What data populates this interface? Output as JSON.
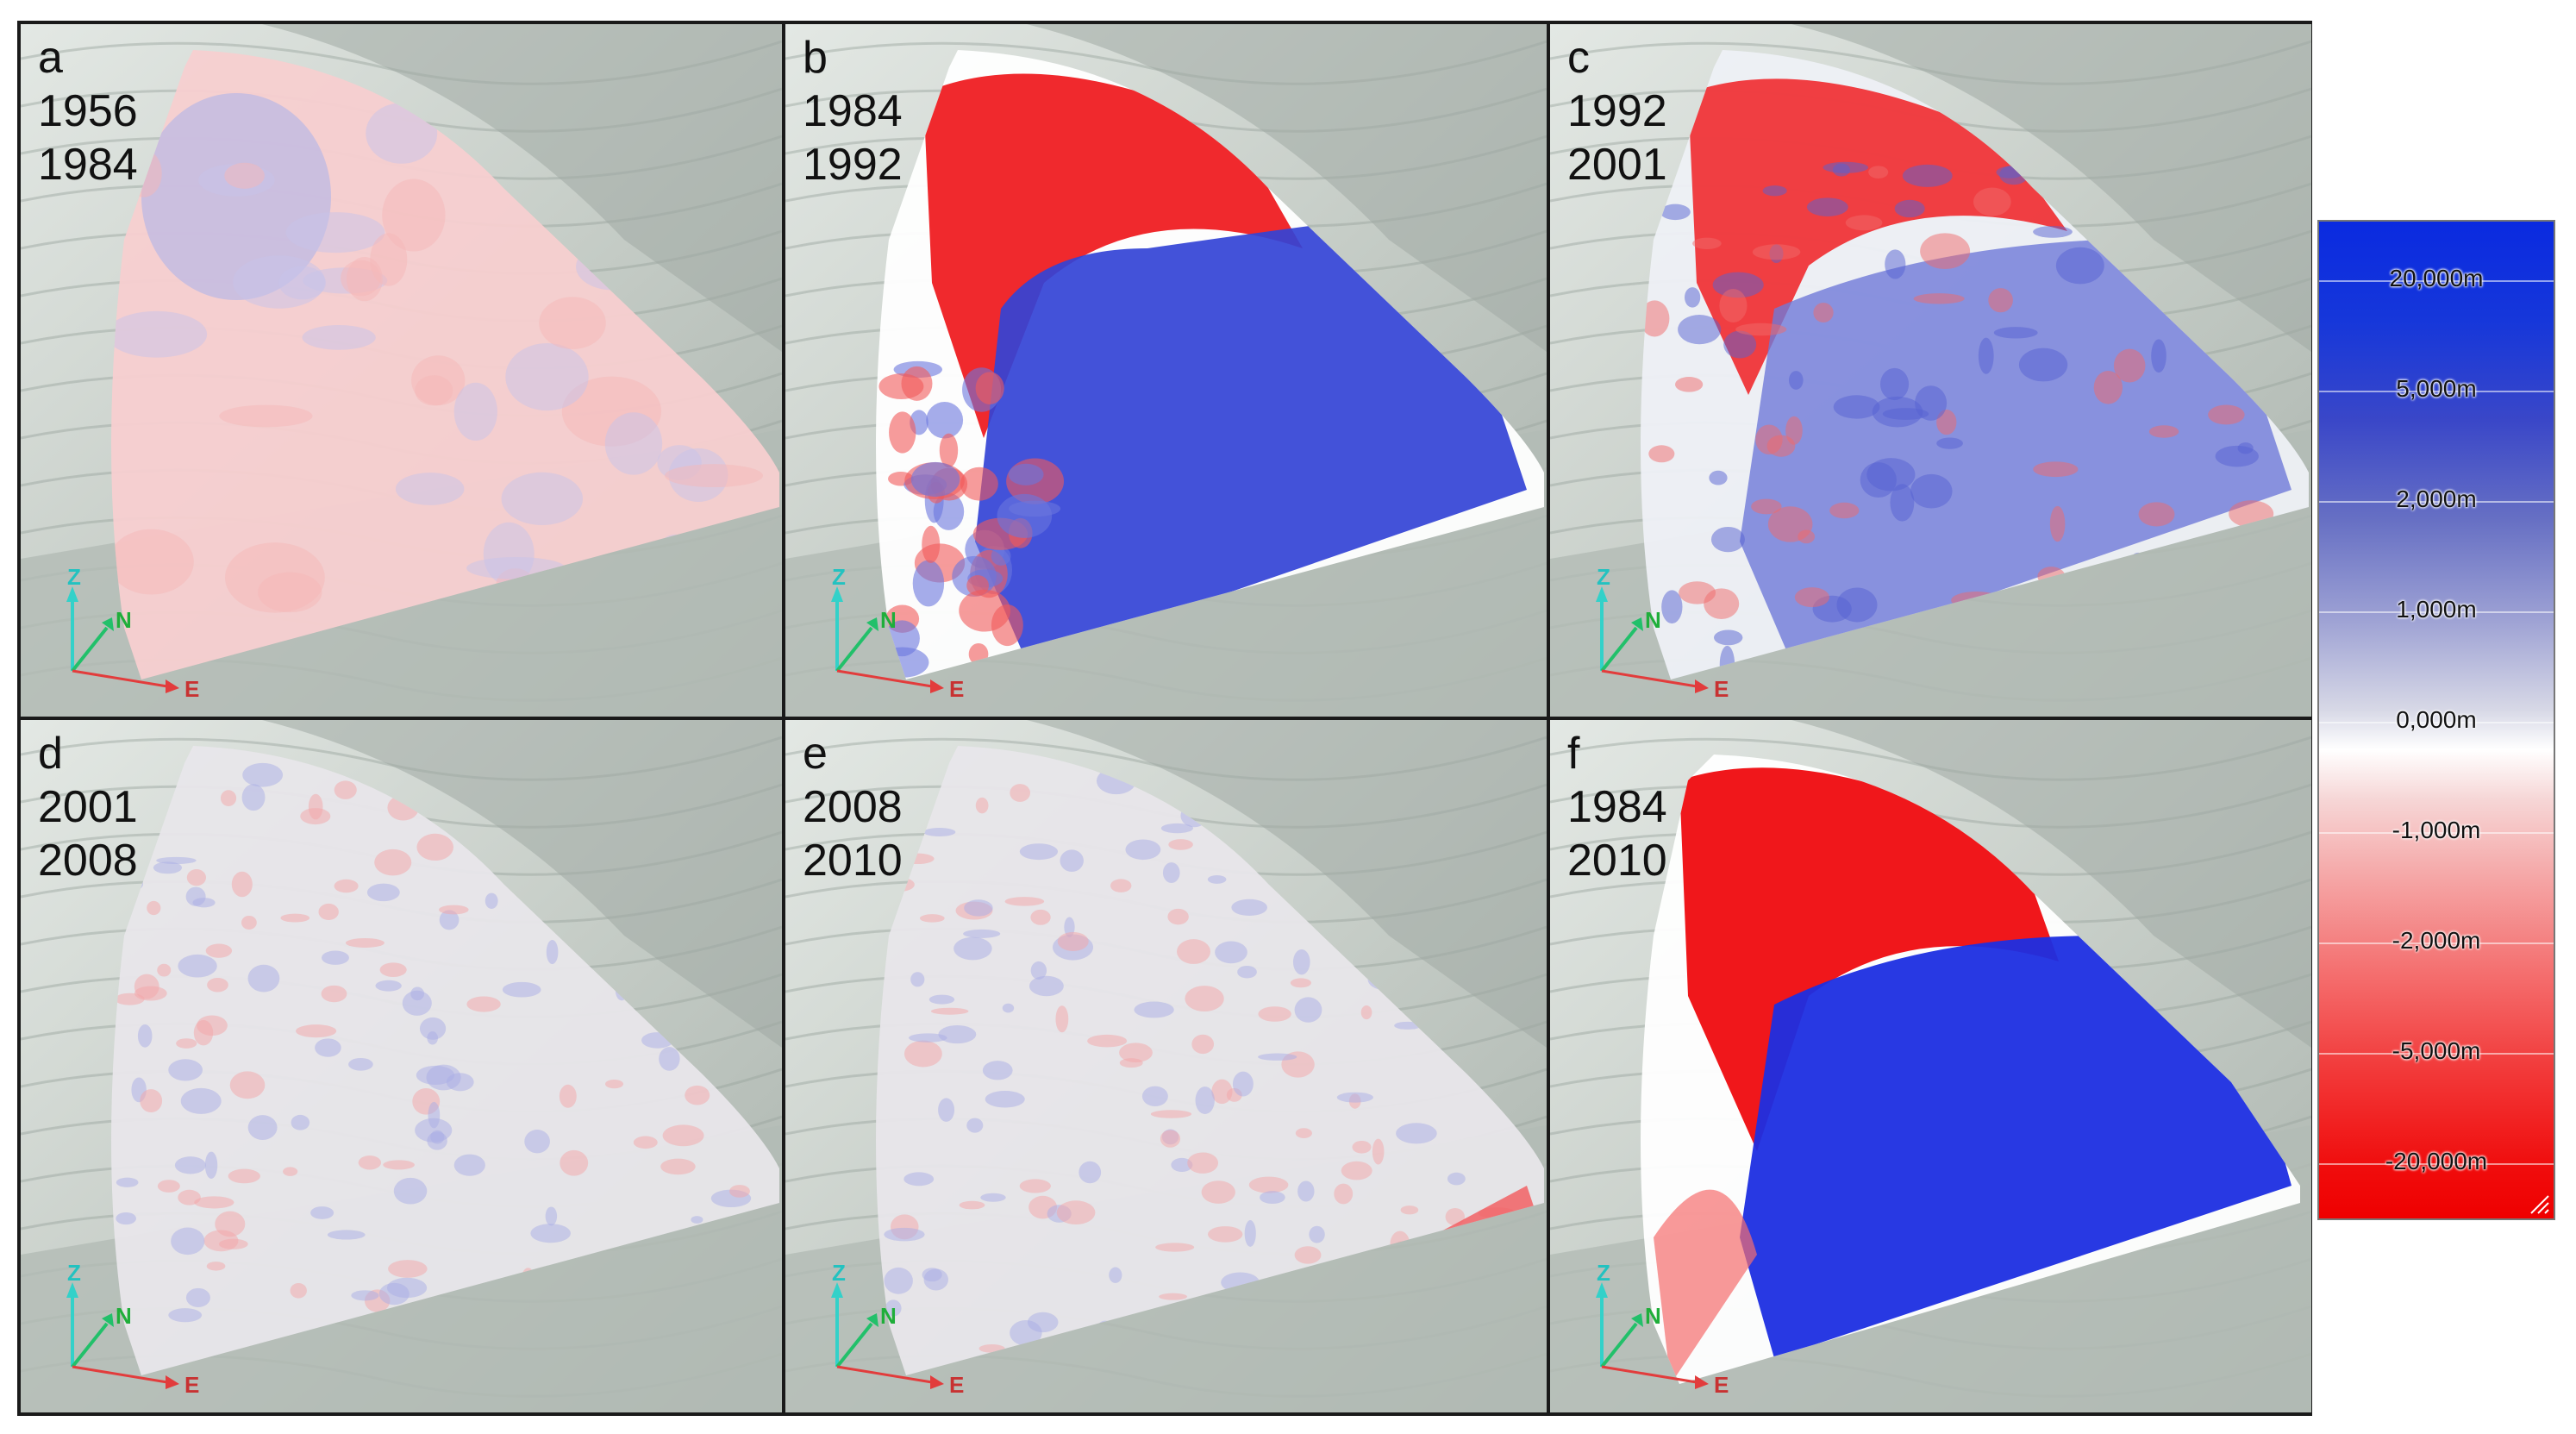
{
  "panels": [
    {
      "letter": "a",
      "year_start": "1956",
      "year_end": "1984",
      "scheme": "faint"
    },
    {
      "letter": "b",
      "year_start": "1984",
      "year_end": "1992",
      "scheme": "strong"
    },
    {
      "letter": "c",
      "year_start": "1992",
      "year_end": "2001",
      "scheme": "medium"
    },
    {
      "letter": "d",
      "year_start": "2001",
      "year_end": "2008",
      "scheme": "noise"
    },
    {
      "letter": "e",
      "year_start": "2008",
      "year_end": "2010",
      "scheme": "noise2"
    },
    {
      "letter": "f",
      "year_start": "1984",
      "year_end": "2010",
      "scheme": "strongest"
    }
  ],
  "axis_labels": {
    "z": "Z",
    "n": "N",
    "e": "E"
  },
  "legend": {
    "values": [
      "20,000m",
      "5,000m",
      "2,000m",
      "1,000m",
      "0,000m",
      "-1,000m",
      "-2,000m",
      "-5,000m",
      "-20,000m"
    ]
  },
  "colors": {
    "positive": "#1020e0",
    "negative": "#ef0000",
    "zero": "#ffffff",
    "terrain": "#c9cfca"
  }
}
